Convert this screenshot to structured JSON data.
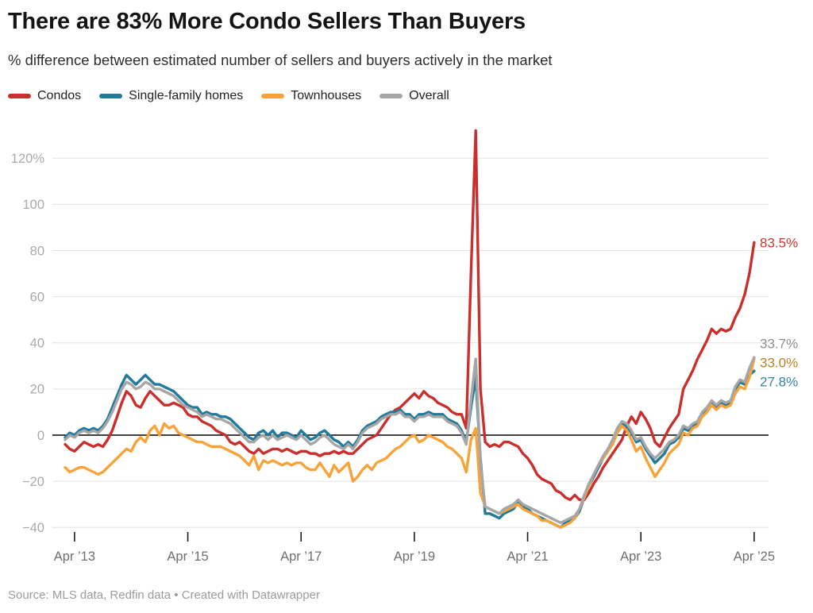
{
  "header": {
    "title": "There are 83% More Condo Sellers Than Buyers",
    "subtitle": "% difference between estimated number of sellers and buyers actively in the market"
  },
  "footer": {
    "source": "Source: MLS data, Redfin data • Created with Datawrapper"
  },
  "chart_data": {
    "type": "line",
    "title": "There are 83% More Condo Sellers Than Buyers",
    "subtitle": "% difference between estimated number of sellers and buyers actively in the market",
    "x_start": "2013-02",
    "x_interval": "monthly",
    "x_ticks": [
      {
        "label": "Apr ’13",
        "month_index": 2
      },
      {
        "label": "Apr ’15",
        "month_index": 26
      },
      {
        "label": "Apr ’17",
        "month_index": 50
      },
      {
        "label": "Apr ’19",
        "month_index": 74
      },
      {
        "label": "Apr ’21",
        "month_index": 98
      },
      {
        "label": "Apr ’23",
        "month_index": 122
      },
      {
        "label": "Apr ’25",
        "month_index": 146
      }
    ],
    "y_ticks": [
      {
        "label": "120%",
        "value": 120
      },
      {
        "label": "100",
        "value": 100
      },
      {
        "label": "80",
        "value": 80
      },
      {
        "label": "60",
        "value": 60
      },
      {
        "label": "40",
        "value": 40
      },
      {
        "label": "20",
        "value": 20
      },
      {
        "label": "0",
        "value": 0
      },
      {
        "label": "−20",
        "value": -20
      },
      {
        "label": "−40",
        "value": -40
      }
    ],
    "ylim": [
      -42,
      135
    ],
    "grid": "horizontal",
    "zero_line": true,
    "legend_position": "top",
    "colors": {
      "grid": "#e2e2e2",
      "zero_line": "#000000",
      "y_label": "#a9a9a9",
      "x_label": "#6e6e6e",
      "tick_mark": "#1a1a1a"
    },
    "series": [
      {
        "name": "Condos",
        "color": "#c92f2c",
        "end_label": "83.5%",
        "end_label_color": "#cf3431",
        "values": [
          -4,
          -6,
          -7,
          -5,
          -3,
          -4,
          -5,
          -4,
          -5,
          -2,
          2,
          8,
          14,
          19,
          17,
          13,
          12,
          16,
          19,
          17,
          15,
          13,
          13,
          14,
          13,
          12,
          9,
          8,
          8,
          6,
          5,
          4,
          2,
          1,
          0,
          -3,
          -4,
          -3,
          -5,
          -7,
          -8,
          -6,
          -8,
          -7,
          -6,
          -6,
          -7,
          -6,
          -7,
          -8,
          -7,
          -7,
          -8,
          -8,
          -9,
          -8,
          -8,
          -7,
          -8,
          -7,
          -8,
          -8,
          -6,
          -4,
          -2,
          -1,
          0,
          3,
          6,
          9,
          11,
          12,
          14,
          16,
          18,
          16,
          19,
          17,
          16,
          14,
          13,
          12,
          10,
          9,
          9,
          3,
          70,
          132,
          20,
          -3,
          -5,
          -4,
          -5,
          -3,
          -3,
          -4,
          -5,
          -8,
          -10,
          -13,
          -17,
          -19,
          -20,
          -21,
          -24,
          -25,
          -27,
          -28,
          -26,
          -28,
          -28,
          -25,
          -21,
          -18,
          -14,
          -11,
          -8,
          -5,
          -2,
          4,
          8,
          5,
          10,
          7,
          3,
          -3,
          -5,
          -1,
          3,
          6,
          9,
          20,
          24,
          28,
          33,
          37,
          41,
          46,
          44,
          46,
          45,
          46,
          51,
          55,
          61,
          70,
          83.5
        ]
      },
      {
        "name": "Single-family homes",
        "color": "#21799b",
        "end_label": "27.8%",
        "end_label_color": "#3183a3",
        "values": [
          -1,
          1,
          0,
          2,
          3,
          2,
          3,
          2,
          4,
          7,
          12,
          17,
          22,
          26,
          24,
          22,
          24,
          26,
          24,
          22,
          22,
          21,
          20,
          19,
          17,
          15,
          13,
          12,
          12,
          9,
          10,
          9,
          9,
          8,
          8,
          7,
          5,
          3,
          1,
          -1,
          -2,
          1,
          2,
          0,
          2,
          -1,
          1,
          1,
          0,
          -1,
          2,
          0,
          -2,
          -1,
          1,
          2,
          0,
          -2,
          -3,
          -5,
          -3,
          -5,
          -2,
          2,
          4,
          5,
          6,
          8,
          9,
          10,
          10,
          11,
          9,
          9,
          7,
          9,
          9,
          10,
          9,
          9,
          9,
          7,
          6,
          5,
          2,
          -3,
          12,
          25,
          -10,
          -34,
          -34,
          -35,
          -36,
          -34,
          -33,
          -32,
          -29,
          -31,
          -32,
          -34,
          -35,
          -36,
          -37,
          -38,
          -39,
          -40,
          -38,
          -37,
          -36,
          -33,
          -27,
          -22,
          -18,
          -14,
          -10,
          -7,
          -3,
          2,
          5,
          4,
          1,
          -3,
          -2,
          -6,
          -9,
          -12,
          -10,
          -8,
          -4,
          -3,
          -1,
          3,
          2,
          4,
          5,
          9,
          11,
          14,
          12,
          14,
          13,
          14,
          20,
          23,
          22,
          26,
          27.8
        ]
      },
      {
        "name": "Townhouses",
        "color": "#f8a339",
        "end_label": "33.0%",
        "end_label_color": "#c07e1f",
        "values": [
          -14,
          -16,
          -15,
          -14,
          -14,
          -15,
          -16,
          -17,
          -16,
          -14,
          -12,
          -10,
          -8,
          -6,
          -7,
          -3,
          -1,
          -3,
          2,
          4,
          0,
          5,
          3,
          4,
          1,
          0,
          -1,
          -2,
          -3,
          -3,
          -4,
          -5,
          -5,
          -5,
          -6,
          -7,
          -8,
          -9,
          -11,
          -13,
          -9,
          -15,
          -11,
          -12,
          -11,
          -12,
          -13,
          -12,
          -13,
          -12,
          -12,
          -14,
          -15,
          -15,
          -12,
          -15,
          -18,
          -13,
          -16,
          -14,
          -12,
          -20,
          -18,
          -15,
          -13,
          -15,
          -12,
          -11,
          -10,
          -8,
          -6,
          -5,
          -3,
          -1,
          0,
          -3,
          -2,
          0,
          -1,
          -2,
          -3,
          -5,
          -6,
          -8,
          -10,
          -16,
          -2,
          3,
          -25,
          -31,
          -32,
          -33,
          -34,
          -33,
          -32,
          -31,
          -30,
          -32,
          -33,
          -34,
          -35,
          -37,
          -37,
          -38,
          -39,
          -40,
          -39,
          -38,
          -36,
          -32,
          -27,
          -22,
          -17,
          -13,
          -10,
          -7,
          -4,
          1,
          4,
          2,
          -2,
          -7,
          -5,
          -10,
          -14,
          -18,
          -15,
          -12,
          -8,
          -6,
          -4,
          1,
          0,
          3,
          4,
          8,
          10,
          13,
          11,
          13,
          12,
          13,
          18,
          21,
          20,
          25,
          33
        ]
      },
      {
        "name": "Overall",
        "color": "#a6a6a6",
        "end_label": "33.7%",
        "end_label_color": "#8d8d8d",
        "values": [
          -2,
          0,
          -1,
          1,
          2,
          1,
          2,
          1,
          3,
          6,
          10,
          15,
          20,
          23,
          22,
          20,
          21,
          23,
          22,
          20,
          20,
          19,
          18,
          17,
          15,
          13,
          12,
          11,
          10,
          8,
          9,
          8,
          7,
          7,
          6,
          5,
          3,
          1,
          -1,
          -3,
          -3,
          -1,
          0,
          -2,
          0,
          -2,
          -1,
          0,
          -1,
          -2,
          0,
          -2,
          -4,
          -3,
          -1,
          0,
          -2,
          -4,
          -5,
          -6,
          -4,
          -6,
          -3,
          1,
          3,
          4,
          5,
          7,
          8,
          9,
          9,
          10,
          8,
          8,
          6,
          8,
          8,
          9,
          8,
          8,
          8,
          6,
          5,
          4,
          1,
          -4,
          15,
          33,
          -12,
          -31,
          -32,
          -33,
          -34,
          -32,
          -31,
          -30,
          -28,
          -30,
          -31,
          -32,
          -33,
          -34,
          -35,
          -36,
          -37,
          -38,
          -37,
          -36,
          -35,
          -32,
          -26,
          -21,
          -17,
          -13,
          -9,
          -6,
          -2,
          3,
          6,
          5,
          2,
          -2,
          -1,
          -5,
          -8,
          -10,
          -8,
          -6,
          -3,
          -2,
          0,
          4,
          3,
          5,
          6,
          10,
          12,
          15,
          13,
          15,
          14,
          15,
          21,
          24,
          23,
          29,
          33.7
        ]
      }
    ]
  }
}
